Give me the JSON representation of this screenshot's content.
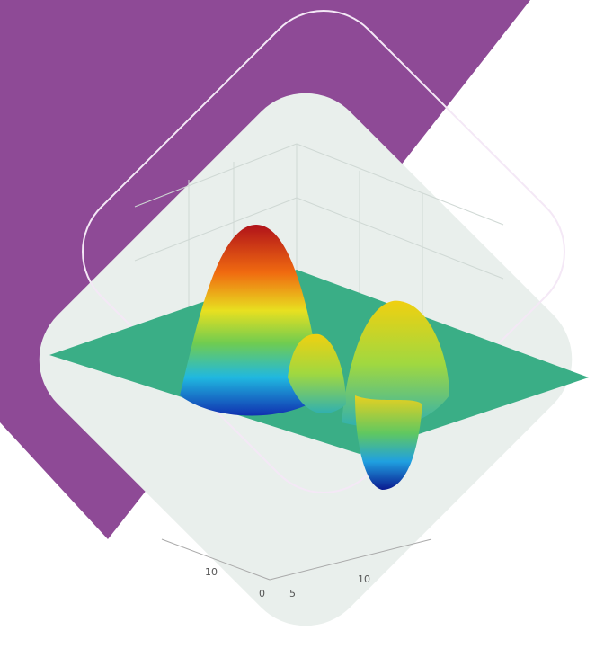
{
  "axis_labels": [
    "10",
    "0",
    "5",
    "10"
  ]
}
